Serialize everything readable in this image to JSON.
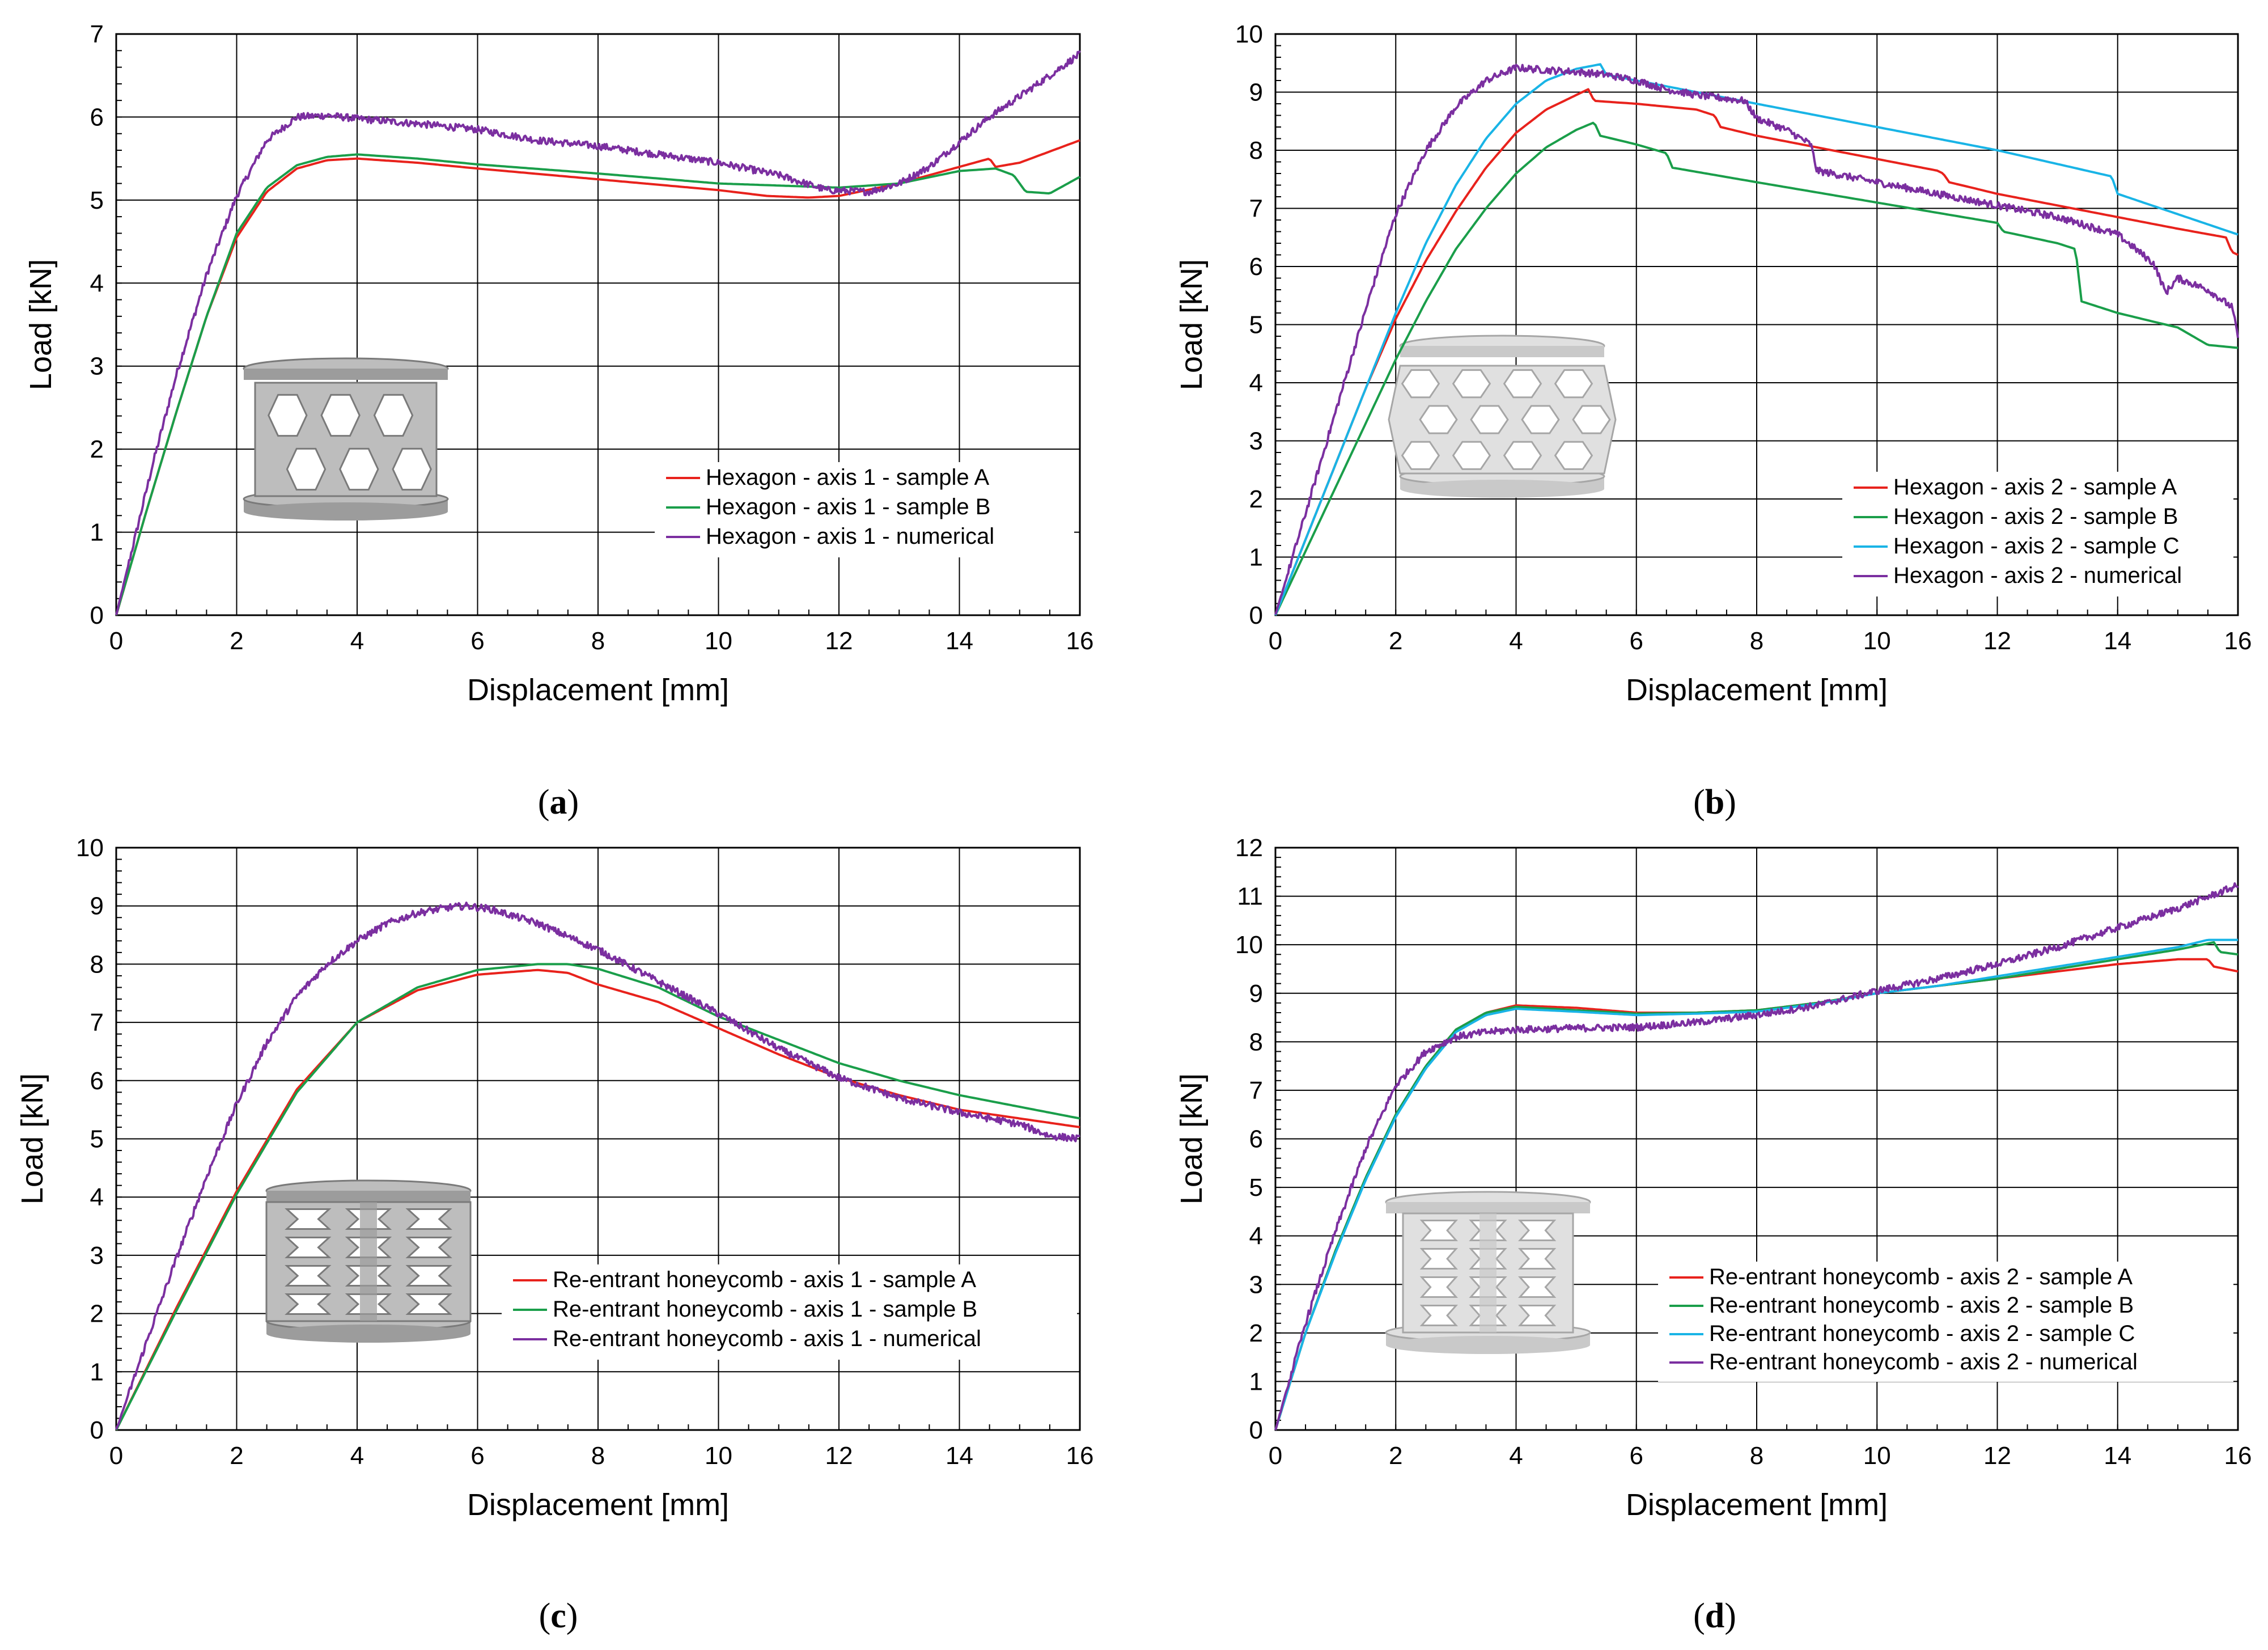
{
  "chart_data": [
    {
      "type": "line",
      "panel": "a",
      "caption_letter": "a",
      "xlabel": "Displacement [mm]",
      "ylabel": "Load [kN]",
      "xlim": [
        0,
        16
      ],
      "ylim": [
        0,
        7
      ],
      "xticks": [
        0,
        2,
        4,
        6,
        8,
        10,
        12,
        14,
        16
      ],
      "yticks": [
        0,
        1,
        2,
        3,
        4,
        5,
        6,
        7
      ],
      "inset": "hexagon-axis-1",
      "series": [
        {
          "name": "Hexagon - axis 1 - sample A",
          "color": "#e8221c",
          "noisy": false,
          "x": [
            0,
            0.5,
            1,
            1.5,
            2,
            2.5,
            3,
            3.5,
            4,
            5,
            6,
            8,
            10,
            10.8,
            11.5,
            12,
            13,
            14,
            14.5,
            14.6,
            15,
            16
          ],
          "y": [
            0,
            1.25,
            2.45,
            3.6,
            4.55,
            5.1,
            5.38,
            5.48,
            5.5,
            5.45,
            5.38,
            5.25,
            5.12,
            5.05,
            5.03,
            5.05,
            5.2,
            5.4,
            5.5,
            5.4,
            5.45,
            5.72
          ]
        },
        {
          "name": "Hexagon - axis 1 - sample B",
          "color": "#1a9e4a",
          "noisy": false,
          "x": [
            0,
            0.5,
            1,
            1.5,
            2,
            2.5,
            3,
            3.5,
            4,
            5,
            6,
            8,
            10,
            12,
            13,
            14,
            14.6,
            14.9,
            15.1,
            15.5,
            16
          ],
          "y": [
            0,
            1.25,
            2.45,
            3.6,
            4.6,
            5.15,
            5.42,
            5.52,
            5.55,
            5.5,
            5.43,
            5.32,
            5.2,
            5.15,
            5.2,
            5.35,
            5.38,
            5.3,
            5.1,
            5.08,
            5.28
          ]
        },
        {
          "name": "Hexagon - axis 1 - numerical",
          "color": "#7b2fa0",
          "noisy": true,
          "x": [
            0,
            0.3,
            0.6,
            1,
            1.5,
            2,
            2.5,
            3,
            3.5,
            4,
            5,
            6,
            7,
            8,
            9,
            10,
            11,
            11.8,
            12.5,
            13,
            13.5,
            14,
            14.5,
            15,
            15.5,
            16
          ],
          "y": [
            0,
            0.9,
            1.8,
            2.9,
            4.1,
            5.05,
            5.72,
            6.0,
            6.02,
            5.98,
            5.92,
            5.85,
            5.72,
            5.65,
            5.55,
            5.45,
            5.3,
            5.12,
            5.1,
            5.2,
            5.4,
            5.7,
            6.0,
            6.25,
            6.5,
            6.76
          ]
        }
      ]
    },
    {
      "type": "line",
      "panel": "b",
      "caption_letter": "b",
      "xlabel": "Displacement [mm]",
      "ylabel": "Load [kN]",
      "xlim": [
        0,
        16
      ],
      "ylim": [
        0,
        10
      ],
      "xticks": [
        0,
        2,
        4,
        6,
        8,
        10,
        12,
        14,
        16
      ],
      "yticks": [
        0,
        1,
        2,
        3,
        4,
        5,
        6,
        7,
        8,
        9,
        10
      ],
      "inset": "hexagon-axis-2",
      "series": [
        {
          "name": "Hexagon - axis 2 - sample A",
          "color": "#e8221c",
          "noisy": false,
          "x": [
            0,
            0.5,
            1,
            1.5,
            2,
            2.5,
            3,
            3.5,
            4,
            4.5,
            5,
            5.2,
            5.3,
            6,
            7,
            7.3,
            7.4,
            8,
            9,
            10,
            11,
            11.1,
            11.2,
            12,
            13,
            14,
            15,
            15.8,
            15.9,
            16
          ],
          "y": [
            0,
            1.3,
            2.6,
            3.9,
            5.1,
            6.1,
            6.95,
            7.7,
            8.3,
            8.7,
            8.95,
            9.05,
            8.85,
            8.8,
            8.7,
            8.6,
            8.4,
            8.25,
            8.05,
            7.85,
            7.65,
            7.6,
            7.45,
            7.25,
            7.05,
            6.85,
            6.65,
            6.5,
            6.25,
            6.2
          ]
        },
        {
          "name": "Hexagon - axis 2 - sample B",
          "color": "#1a9e4a",
          "noisy": false,
          "x": [
            0,
            0.5,
            1,
            1.5,
            2,
            2.5,
            3,
            3.5,
            4,
            4.5,
            5,
            5.3,
            5.4,
            6,
            6.5,
            6.6,
            8,
            10,
            12,
            12.1,
            13,
            13.3,
            13.4,
            14,
            15,
            15.5,
            16
          ],
          "y": [
            0,
            1.1,
            2.2,
            3.3,
            4.4,
            5.4,
            6.3,
            7.0,
            7.6,
            8.05,
            8.35,
            8.48,
            8.25,
            8.1,
            7.95,
            7.7,
            7.45,
            7.1,
            6.75,
            6.6,
            6.4,
            6.3,
            5.4,
            5.2,
            4.95,
            4.65,
            4.6
          ]
        },
        {
          "name": "Hexagon - axis 2 - sample C",
          "color": "#19b4e6",
          "noisy": false,
          "x": [
            0,
            0.5,
            1,
            1.5,
            2,
            2.5,
            3,
            3.5,
            4,
            4.5,
            5,
            5.4,
            5.5,
            6,
            8,
            10,
            12,
            13.9,
            14,
            15,
            16
          ],
          "y": [
            0,
            1.3,
            2.6,
            3.9,
            5.2,
            6.4,
            7.4,
            8.2,
            8.8,
            9.2,
            9.4,
            9.48,
            9.3,
            9.2,
            8.8,
            8.4,
            8.0,
            7.55,
            7.25,
            6.9,
            6.55
          ]
        },
        {
          "name": "Hexagon - axis 2 - numerical",
          "color": "#7b2fa0",
          "noisy": true,
          "x": [
            0,
            0.4,
            0.8,
            1.2,
            1.6,
            2,
            2.5,
            3,
            3.5,
            4,
            4.5,
            5,
            5.5,
            6,
            6.5,
            7,
            7.8,
            8,
            8.5,
            8.9,
            9,
            10,
            11,
            12,
            13,
            14,
            14.6,
            14.8,
            15,
            15.5,
            15.9,
            16
          ],
          "y": [
            0,
            1.4,
            2.8,
            4.2,
            5.6,
            6.9,
            8.0,
            8.75,
            9.2,
            9.42,
            9.38,
            9.35,
            9.3,
            9.2,
            9.05,
            8.95,
            8.85,
            8.55,
            8.35,
            8.1,
            7.65,
            7.45,
            7.25,
            7.05,
            6.85,
            6.55,
            6.05,
            5.55,
            5.8,
            5.6,
            5.3,
            4.8
          ]
        }
      ]
    },
    {
      "type": "line",
      "panel": "c",
      "caption_letter": "c",
      "xlabel": "Displacement [mm]",
      "ylabel": "Load [kN]",
      "xlim": [
        0,
        16
      ],
      "ylim": [
        0,
        10
      ],
      "xticks": [
        0,
        2,
        4,
        6,
        8,
        10,
        12,
        14,
        16
      ],
      "yticks": [
        0,
        1,
        2,
        3,
        4,
        5,
        6,
        7,
        8,
        9,
        10
      ],
      "inset": "reentrant-axis-1",
      "series": [
        {
          "name": "Re-entrant honeycomb - axis 1 - sample A",
          "color": "#e8221c",
          "noisy": false,
          "x": [
            0,
            1,
            2,
            3,
            4,
            5,
            6,
            7,
            7.5,
            8,
            9,
            10,
            11,
            12,
            13,
            14,
            15,
            16
          ],
          "y": [
            0,
            2.1,
            4.1,
            5.85,
            7.0,
            7.55,
            7.82,
            7.9,
            7.85,
            7.65,
            7.35,
            6.9,
            6.45,
            6.05,
            5.75,
            5.5,
            5.35,
            5.2
          ]
        },
        {
          "name": "Re-entrant honeycomb - axis 1 - sample B",
          "color": "#1a9e4a",
          "noisy": false,
          "x": [
            0,
            1,
            2,
            3,
            4,
            5,
            6,
            7,
            7.5,
            8,
            9,
            10,
            11,
            12,
            13,
            14,
            15,
            16
          ],
          "y": [
            0,
            2.05,
            4.05,
            5.8,
            7.0,
            7.6,
            7.9,
            8.0,
            8.0,
            7.92,
            7.6,
            7.1,
            6.7,
            6.3,
            6.0,
            5.75,
            5.55,
            5.35
          ]
        },
        {
          "name": "Re-entrant honeycomb - axis 1 - numerical",
          "color": "#7b2fa0",
          "noisy": true,
          "x": [
            0,
            0.5,
            1,
            1.5,
            2,
            2.5,
            3,
            3.5,
            4,
            4.5,
            5,
            5.5,
            5.8,
            6.2,
            7,
            8,
            9,
            10,
            11,
            12,
            13,
            14,
            15,
            15.5,
            16
          ],
          "y": [
            0,
            1.5,
            2.95,
            4.35,
            5.6,
            6.65,
            7.45,
            8.0,
            8.4,
            8.7,
            8.88,
            8.97,
            9.0,
            8.95,
            8.7,
            8.25,
            7.7,
            7.15,
            6.55,
            6.05,
            5.7,
            5.45,
            5.25,
            5.05,
            5.0
          ]
        }
      ]
    },
    {
      "type": "line",
      "panel": "d",
      "caption_letter": "d",
      "xlabel": "Displacement [mm]",
      "ylabel": "Load [kN]",
      "xlim": [
        0,
        16
      ],
      "ylim": [
        0,
        12
      ],
      "xticks": [
        0,
        2,
        4,
        6,
        8,
        10,
        12,
        14,
        16
      ],
      "yticks": [
        0,
        1,
        2,
        3,
        4,
        5,
        6,
        7,
        8,
        9,
        10,
        11,
        12
      ],
      "inset": "reentrant-axis-2",
      "series": [
        {
          "name": "Re-entrant honeycomb - axis 2 - sample A",
          "color": "#e8221c",
          "noisy": false,
          "x": [
            0,
            0.5,
            1,
            1.5,
            2,
            2.5,
            3,
            3.5,
            4,
            5,
            6,
            7,
            8,
            9,
            10,
            11,
            12,
            13,
            14,
            15,
            15.5,
            15.6,
            16
          ],
          "y": [
            0,
            2.0,
            3.7,
            5.2,
            6.5,
            7.5,
            8.25,
            8.6,
            8.75,
            8.7,
            8.6,
            8.6,
            8.65,
            8.8,
            9.0,
            9.15,
            9.3,
            9.45,
            9.6,
            9.7,
            9.7,
            9.55,
            9.45
          ]
        },
        {
          "name": "Re-entrant honeycomb - axis 2 - sample B",
          "color": "#1a9e4a",
          "noisy": false,
          "x": [
            0,
            0.5,
            1,
            1.5,
            2,
            2.5,
            3,
            3.5,
            4,
            5,
            6,
            7,
            8,
            9,
            10,
            11,
            12,
            13,
            14,
            15,
            15.6,
            15.7,
            16
          ],
          "y": [
            0,
            2.0,
            3.7,
            5.2,
            6.5,
            7.5,
            8.25,
            8.6,
            8.72,
            8.65,
            8.58,
            8.6,
            8.65,
            8.8,
            9.0,
            9.15,
            9.3,
            9.5,
            9.7,
            9.9,
            10.05,
            9.85,
            9.8
          ]
        },
        {
          "name": "Re-entrant honeycomb - axis 2 - sample C",
          "color": "#19b4e6",
          "noisy": false,
          "x": [
            0,
            0.5,
            1,
            1.5,
            2,
            2.5,
            3,
            3.5,
            4,
            5,
            6,
            7,
            8,
            9,
            10,
            11,
            12,
            13,
            14,
            15,
            15.5,
            16
          ],
          "y": [
            0,
            2.0,
            3.65,
            5.15,
            6.45,
            7.45,
            8.2,
            8.55,
            8.68,
            8.62,
            8.55,
            8.58,
            8.62,
            8.78,
            9.0,
            9.15,
            9.35,
            9.55,
            9.75,
            9.95,
            10.1,
            10.1
          ]
        },
        {
          "name": "Re-entrant honeycomb - axis 2 - numerical",
          "color": "#7b2fa0",
          "noisy": true,
          "x": [
            0,
            0.5,
            1,
            1.5,
            2,
            2.5,
            3,
            3.5,
            4,
            5,
            6,
            7,
            8,
            9,
            10,
            11,
            12,
            13,
            14,
            15,
            16
          ],
          "y": [
            0,
            2.2,
            4.1,
            5.8,
            7.1,
            7.8,
            8.1,
            8.2,
            8.25,
            8.28,
            8.3,
            8.4,
            8.55,
            8.75,
            9.05,
            9.3,
            9.6,
            9.95,
            10.35,
            10.75,
            11.22
          ]
        }
      ]
    }
  ]
}
